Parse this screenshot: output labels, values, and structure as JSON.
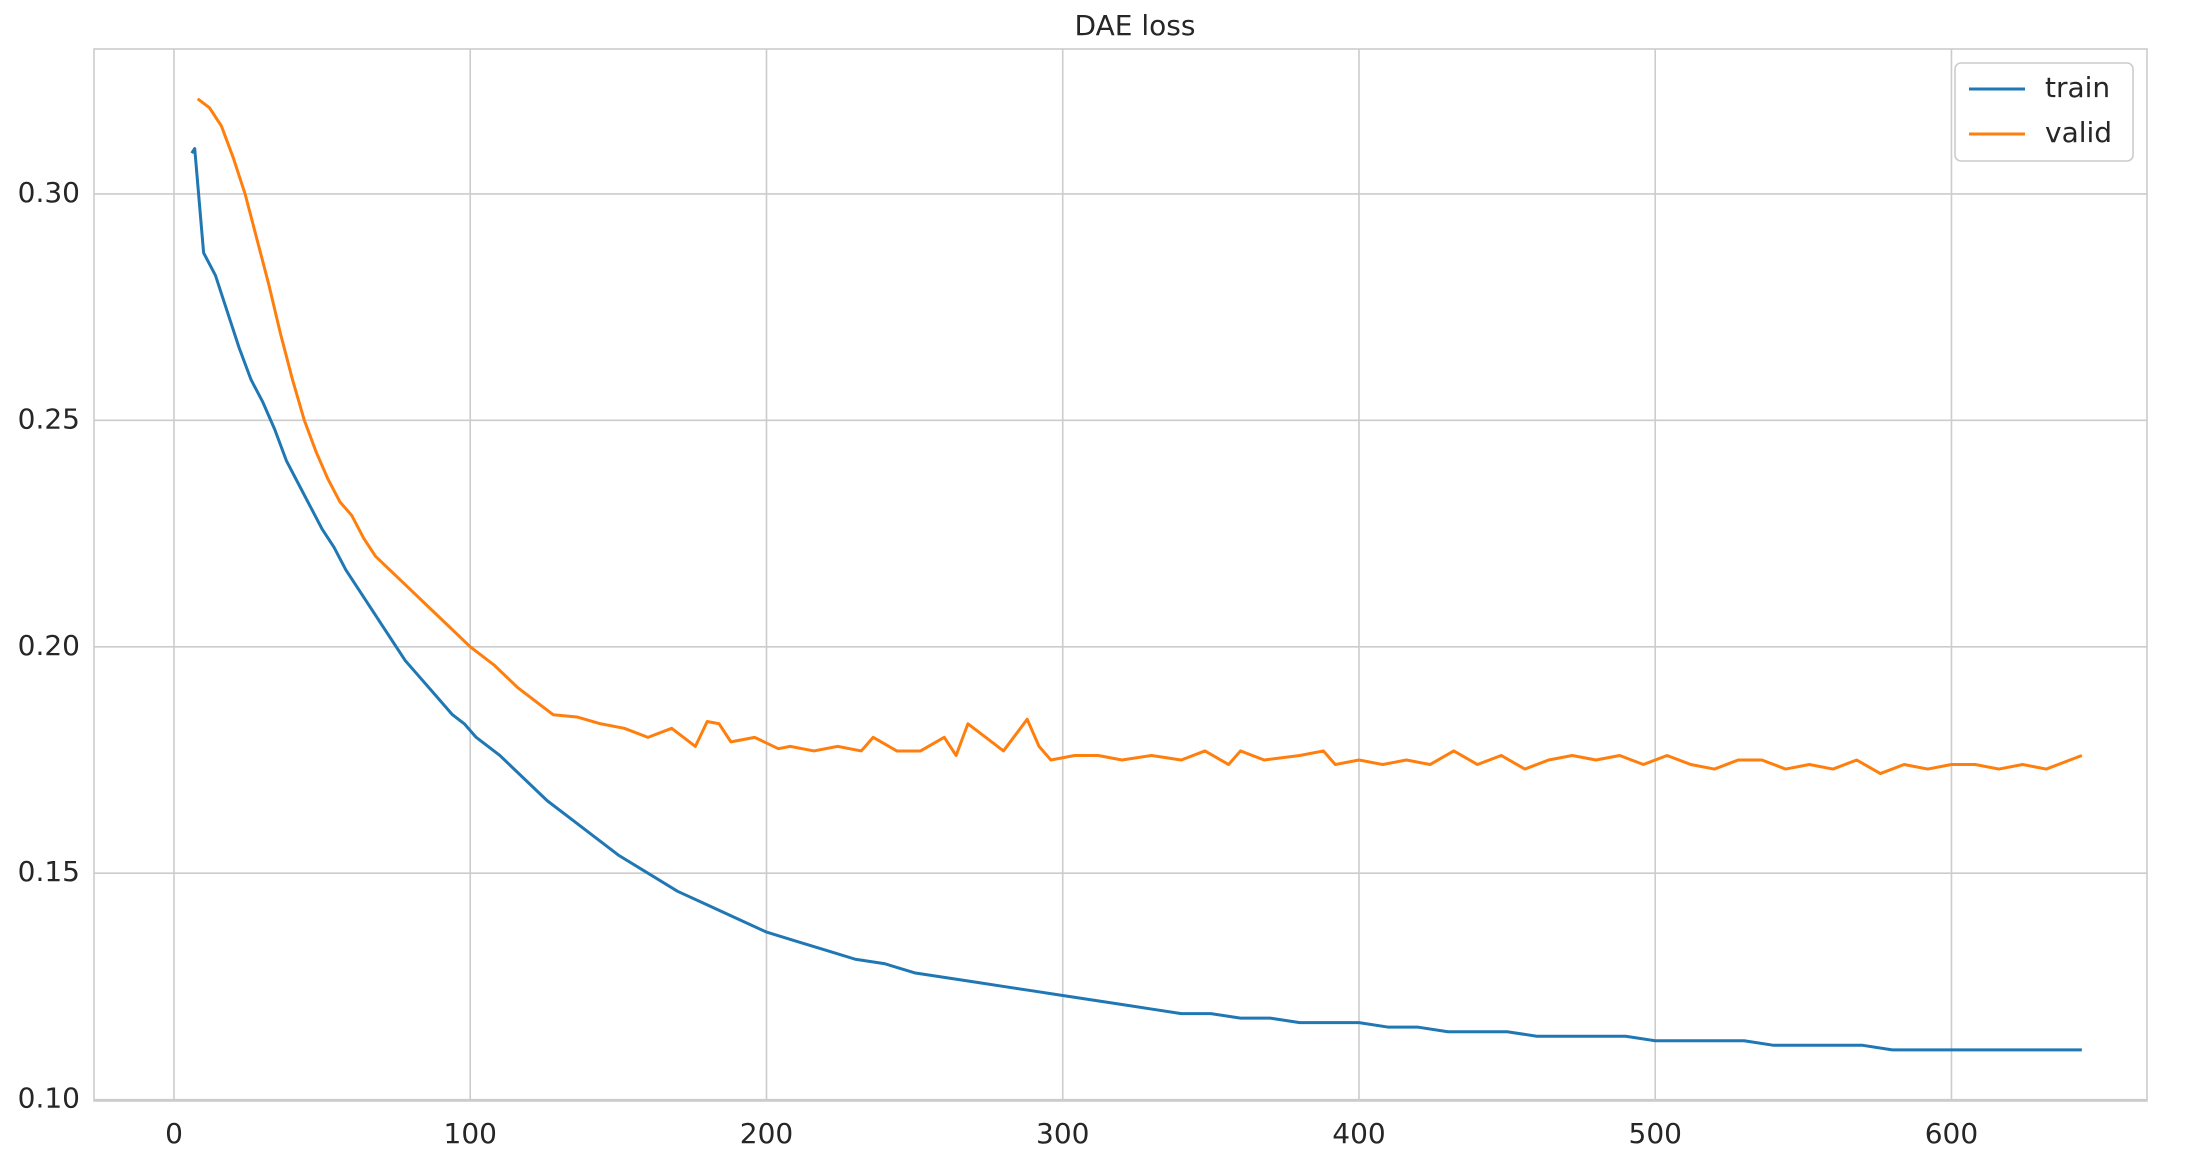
{
  "chart_data": {
    "type": "line",
    "title": "DAE loss",
    "series": [
      {
        "name": "train",
        "color": "#1f77b4",
        "x": [
          6,
          7,
          10,
          14,
          18,
          22,
          26,
          30,
          34,
          38,
          42,
          46,
          50,
          54,
          58,
          62,
          66,
          70,
          74,
          78,
          82,
          86,
          90,
          94,
          98,
          102,
          110,
          118,
          126,
          134,
          142,
          150,
          160,
          170,
          180,
          190,
          200,
          210,
          220,
          230,
          240,
          250,
          260,
          270,
          280,
          290,
          300,
          310,
          320,
          330,
          340,
          350,
          360,
          370,
          380,
          390,
          400,
          410,
          420,
          430,
          440,
          450,
          460,
          470,
          480,
          490,
          500,
          510,
          520,
          530,
          540,
          550,
          560,
          570,
          580,
          590,
          600,
          610,
          620,
          630,
          640,
          644
        ],
        "values": [
          0.309,
          0.31,
          0.287,
          0.282,
          0.274,
          0.266,
          0.259,
          0.254,
          0.248,
          0.241,
          0.236,
          0.231,
          0.226,
          0.222,
          0.217,
          0.213,
          0.209,
          0.205,
          0.201,
          0.197,
          0.194,
          0.191,
          0.188,
          0.185,
          0.183,
          0.18,
          0.176,
          0.171,
          0.166,
          0.162,
          0.158,
          0.154,
          0.15,
          0.146,
          0.143,
          0.14,
          0.137,
          0.135,
          0.133,
          0.131,
          0.13,
          0.128,
          0.127,
          0.126,
          0.125,
          0.124,
          0.123,
          0.122,
          0.121,
          0.12,
          0.119,
          0.119,
          0.118,
          0.118,
          0.117,
          0.117,
          0.117,
          0.116,
          0.116,
          0.115,
          0.115,
          0.115,
          0.114,
          0.114,
          0.114,
          0.114,
          0.113,
          0.113,
          0.113,
          0.113,
          0.112,
          0.112,
          0.112,
          0.112,
          0.111,
          0.111,
          0.111,
          0.111,
          0.111,
          0.111,
          0.111,
          0.111
        ]
      },
      {
        "name": "valid",
        "color": "#ff7f0e",
        "x": [
          8,
          12,
          16,
          20,
          24,
          28,
          32,
          36,
          40,
          44,
          48,
          52,
          56,
          60,
          64,
          68,
          76,
          84,
          92,
          100,
          108,
          116,
          124,
          128,
          136,
          144,
          152,
          160,
          168,
          176,
          180,
          184,
          188,
          196,
          204,
          208,
          216,
          224,
          232,
          236,
          244,
          252,
          260,
          264,
          268,
          272,
          280,
          288,
          292,
          296,
          304,
          312,
          320,
          330,
          340,
          348,
          356,
          360,
          368,
          380,
          388,
          392,
          400,
          408,
          416,
          424,
          432,
          440,
          448,
          456,
          464,
          472,
          480,
          488,
          496,
          504,
          512,
          520,
          528,
          536,
          544,
          552,
          560,
          568,
          576,
          584,
          592,
          600,
          608,
          616,
          624,
          632,
          640,
          644
        ],
        "values": [
          0.321,
          0.319,
          0.315,
          0.308,
          0.3,
          0.29,
          0.28,
          0.269,
          0.259,
          0.25,
          0.243,
          0.237,
          0.232,
          0.229,
          0.224,
          0.22,
          0.215,
          0.21,
          0.205,
          0.2,
          0.196,
          0.191,
          0.187,
          0.185,
          0.1845,
          0.183,
          0.182,
          0.18,
          0.182,
          0.178,
          0.1835,
          0.183,
          0.179,
          0.18,
          0.1775,
          0.178,
          0.177,
          0.178,
          0.177,
          0.18,
          0.177,
          0.177,
          0.18,
          0.176,
          0.183,
          0.181,
          0.177,
          0.184,
          0.178,
          0.175,
          0.176,
          0.176,
          0.175,
          0.176,
          0.175,
          0.177,
          0.174,
          0.177,
          0.175,
          0.176,
          0.177,
          0.174,
          0.175,
          0.174,
          0.175,
          0.174,
          0.177,
          0.174,
          0.176,
          0.173,
          0.175,
          0.176,
          0.175,
          0.176,
          0.174,
          0.176,
          0.174,
          0.173,
          0.175,
          0.175,
          0.173,
          0.174,
          0.173,
          0.175,
          0.172,
          0.174,
          0.173,
          0.174,
          0.174,
          0.173,
          0.174,
          0.173,
          0.175,
          0.176
        ]
      }
    ],
    "xlim": [
      -27,
      666
    ],
    "ylim": [
      0.0997,
      0.332
    ],
    "xticks": [
      0,
      100,
      200,
      300,
      400,
      500,
      600
    ],
    "yticks": [
      {
        "value": 0.1,
        "label": "0.10"
      },
      {
        "value": 0.15,
        "label": "0.15"
      },
      {
        "value": 0.2,
        "label": "0.20"
      },
      {
        "value": 0.25,
        "label": "0.25"
      },
      {
        "value": 0.3,
        "label": "0.30"
      }
    ],
    "grid": true,
    "legend": "upper right"
  }
}
